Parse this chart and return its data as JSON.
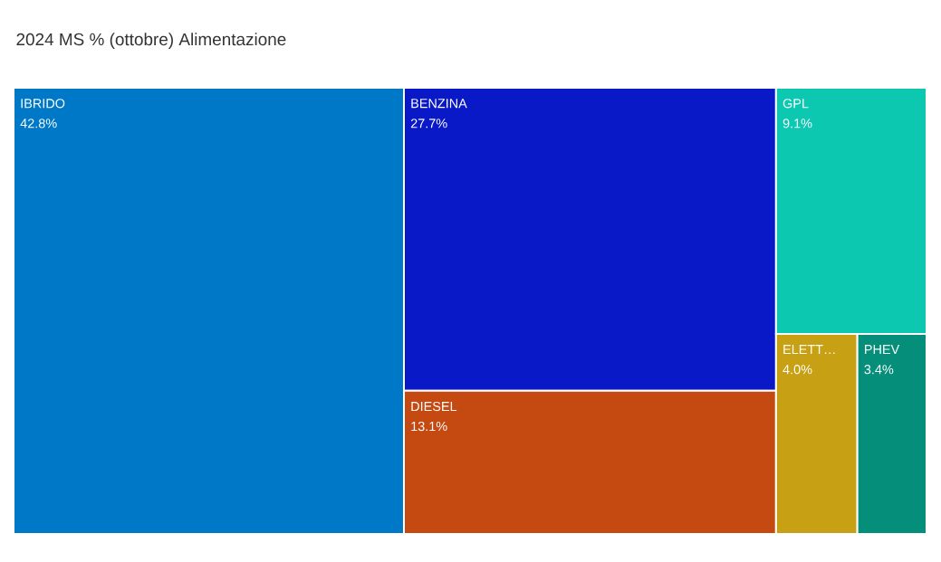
{
  "chart_data": {
    "type": "other",
    "title": "2024 MS % (ottobre) Alimentazione",
    "categories": [
      "IBRIDO",
      "BENZINA",
      "DIESEL",
      "GPL",
      "ELETT…",
      "PHEV"
    ],
    "values": [
      42.8,
      27.7,
      13.1,
      9.1,
      4.0,
      3.4
    ],
    "value_labels": [
      "42.8%",
      "27.7%",
      "13.1%",
      "9.1%",
      "4.0%",
      "3.4%"
    ],
    "colors": [
      "#0078c8",
      "#0a19c8",
      "#c54a12",
      "#0dc8b0",
      "#c8a014",
      "#058f7a"
    ]
  }
}
